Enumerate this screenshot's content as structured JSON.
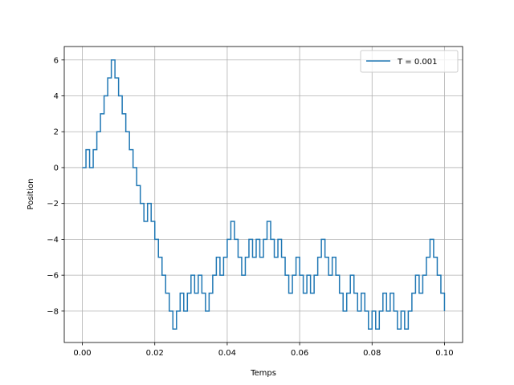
{
  "chart_data": {
    "type": "line",
    "drawstyle": "steps",
    "title": "",
    "xlabel": "Temps",
    "ylabel": "Position",
    "xlim": [
      -0.005,
      0.105
    ],
    "ylim": [
      -9.75,
      6.75
    ],
    "xticks": [
      0.0,
      0.02,
      0.04,
      0.06,
      0.08,
      0.1
    ],
    "xtick_labels": [
      "0.00",
      "0.02",
      "0.04",
      "0.06",
      "0.08",
      "0.10"
    ],
    "yticks": [
      -8,
      -6,
      -4,
      -2,
      0,
      2,
      4,
      6
    ],
    "ytick_labels": [
      "−8",
      "−6",
      "−4",
      "−2",
      "0",
      "2",
      "4",
      "6"
    ],
    "grid": true,
    "legend": {
      "position": "upper right"
    },
    "series": [
      {
        "name": "T = 0.001",
        "color": "#1f77b4",
        "x": [
          0.0,
          0.001,
          0.002,
          0.003,
          0.004,
          0.005,
          0.006,
          0.007,
          0.008,
          0.009,
          0.01,
          0.011,
          0.012,
          0.013,
          0.014,
          0.015,
          0.016,
          0.017,
          0.018,
          0.019,
          0.02,
          0.021,
          0.022,
          0.023,
          0.024,
          0.025,
          0.026,
          0.027,
          0.028,
          0.029,
          0.03,
          0.031,
          0.032,
          0.033,
          0.034,
          0.035,
          0.036,
          0.037,
          0.038,
          0.039,
          0.04,
          0.041,
          0.042,
          0.043,
          0.044,
          0.045,
          0.046,
          0.047,
          0.048,
          0.049,
          0.05,
          0.051,
          0.052,
          0.053,
          0.054,
          0.055,
          0.056,
          0.057,
          0.058,
          0.059,
          0.06,
          0.061,
          0.062,
          0.063,
          0.064,
          0.065,
          0.066,
          0.067,
          0.068,
          0.069,
          0.07,
          0.071,
          0.072,
          0.073,
          0.074,
          0.075,
          0.076,
          0.077,
          0.078,
          0.079,
          0.08,
          0.081,
          0.082,
          0.083,
          0.084,
          0.085,
          0.086,
          0.087,
          0.088,
          0.089,
          0.09,
          0.091,
          0.092,
          0.093,
          0.094,
          0.095,
          0.096,
          0.097,
          0.098,
          0.099,
          0.1
        ],
        "y": [
          0,
          1,
          0,
          1,
          2,
          3,
          4,
          5,
          6,
          5,
          4,
          3,
          2,
          1,
          0,
          -1,
          -2,
          -3,
          -2,
          -3,
          -4,
          -5,
          -6,
          -7,
          -8,
          -9,
          -8,
          -7,
          -8,
          -7,
          -6,
          -7,
          -6,
          -7,
          -8,
          -7,
          -6,
          -5,
          -6,
          -5,
          -4,
          -3,
          -4,
          -5,
          -6,
          -5,
          -4,
          -5,
          -4,
          -5,
          -4,
          -3,
          -4,
          -5,
          -4,
          -5,
          -6,
          -7,
          -6,
          -5,
          -6,
          -7,
          -6,
          -7,
          -6,
          -5,
          -4,
          -5,
          -6,
          -5,
          -6,
          -7,
          -8,
          -7,
          -6,
          -7,
          -8,
          -7,
          -8,
          -9,
          -8,
          -9,
          -8,
          -7,
          -8,
          -7,
          -8,
          -9,
          -8,
          -9,
          -8,
          -7,
          -6,
          -7,
          -6,
          -5,
          -4,
          -5,
          -6,
          -7,
          -8
        ]
      }
    ]
  }
}
